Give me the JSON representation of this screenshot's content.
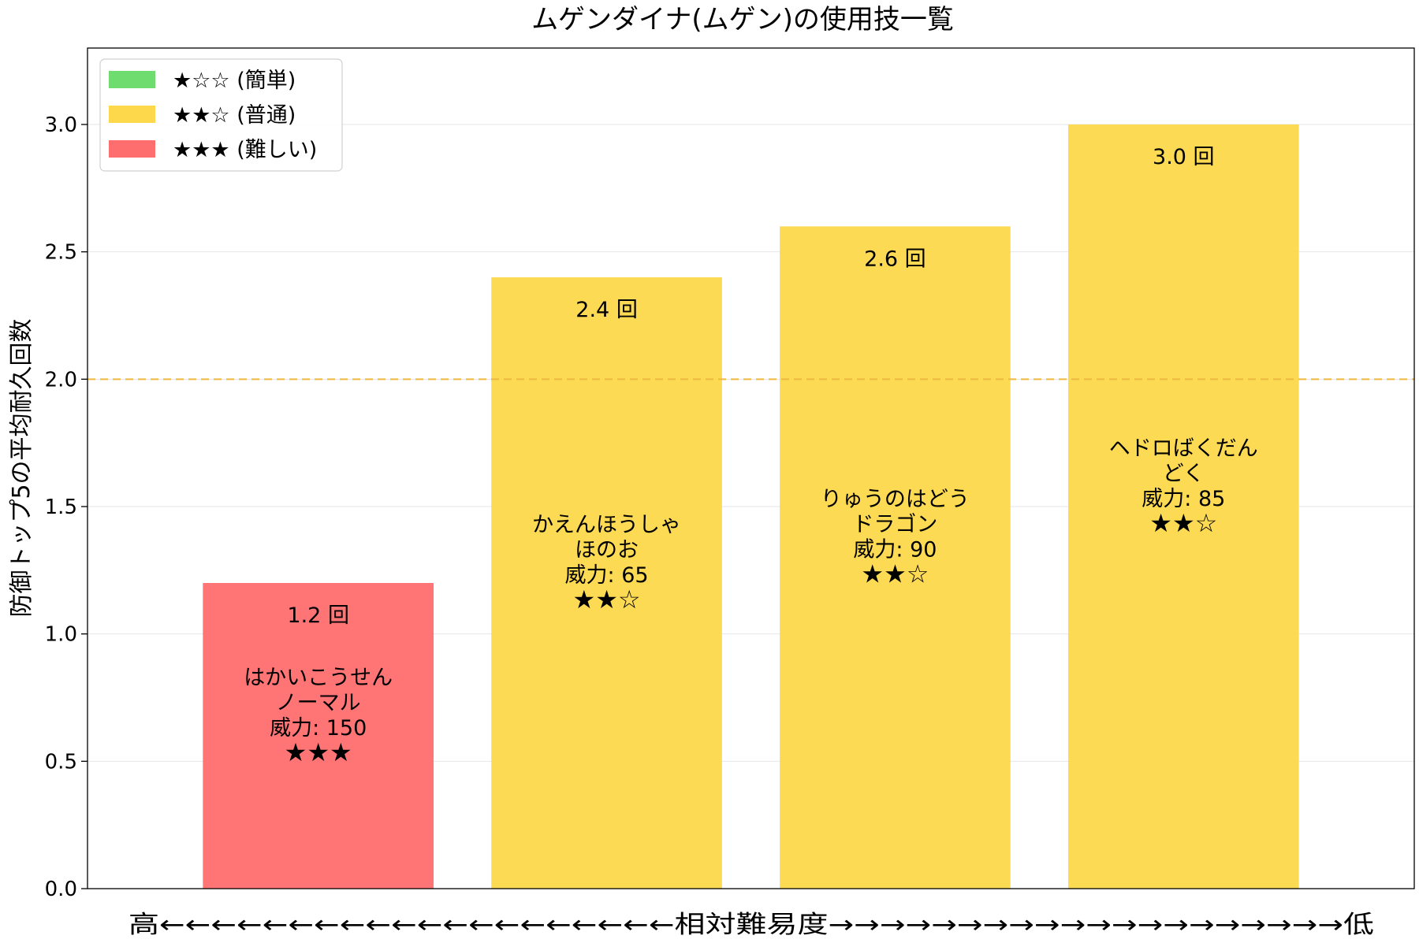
{
  "chart_data": {
    "type": "bar",
    "title": "ムゲンダイナ(ムゲン)の使用技一覧",
    "ylabel": "防御トップ5の平均耐久回数",
    "xlabel": "高←←←←←←←←←←←←←←←←←←←←相対難易度→→→→→→→→→→→→→→→→→→→→低",
    "ylim": [
      0,
      3.3
    ],
    "yticks": [
      "0.0",
      "0.5",
      "1.0",
      "1.5",
      "2.0",
      "2.5",
      "3.0"
    ],
    "reference_line": {
      "value": 2.0,
      "style": "dashed",
      "color": "#f0b840"
    },
    "grid": "horizontal-light",
    "legend_position": "top-left",
    "legend": [
      {
        "label": "★☆☆ (簡単)",
        "color": "#6fdc6f"
      },
      {
        "label": "★★☆ (普通)",
        "color": "#fdd84a"
      },
      {
        "label": "★★★ (難しい)",
        "color": "#ff6e6e"
      }
    ],
    "bars": [
      {
        "move": "はかいこうせん",
        "type": "ノーマル",
        "power": "威力: 150",
        "stars": "★★★",
        "value": 1.2,
        "value_label": "1.2 回",
        "color": "#ff6e6e"
      },
      {
        "move": "かえんほうしゃ",
        "type": "ほのお",
        "power": "威力: 65",
        "stars": "★★☆",
        "value": 2.4,
        "value_label": "2.4 回",
        "color": "#fdd84a"
      },
      {
        "move": "りゅうのはどう",
        "type": "ドラゴン",
        "power": "威力: 90",
        "stars": "★★☆",
        "value": 2.6,
        "value_label": "2.6 回",
        "color": "#fdd84a"
      },
      {
        "move": "ヘドロばくだん",
        "type": "どく",
        "power": "威力: 85",
        "stars": "★★☆",
        "value": 3.0,
        "value_label": "3.0 回",
        "color": "#fdd84a"
      }
    ]
  }
}
